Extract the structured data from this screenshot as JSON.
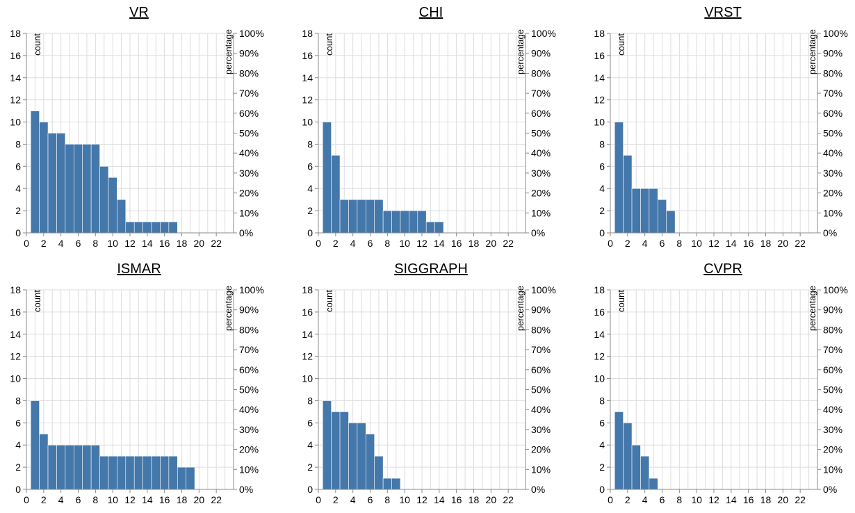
{
  "chart_data": [
    {
      "type": "bar",
      "title": "VR",
      "x": [
        1,
        2,
        3,
        4,
        5,
        6,
        7,
        8,
        9,
        10,
        11,
        12,
        13,
        14,
        15,
        16,
        17
      ],
      "values": [
        11,
        10,
        9,
        9,
        8,
        8,
        8,
        8,
        6,
        5,
        3,
        1,
        1,
        1,
        1,
        1,
        1
      ],
      "xlabel": "",
      "ylabel": "count",
      "y2label": "percentage",
      "xlim": [
        0,
        24
      ],
      "ylim": [
        0,
        18
      ],
      "y2lim": [
        0,
        100
      ],
      "xticks": [
        0,
        2,
        4,
        6,
        8,
        10,
        12,
        14,
        16,
        18,
        20,
        22
      ],
      "yticks": [
        0,
        2,
        4,
        6,
        8,
        10,
        12,
        14,
        16,
        18
      ],
      "y2ticks": [
        "0%",
        "10%",
        "20%",
        "30%",
        "40%",
        "50%",
        "60%",
        "70%",
        "80%",
        "90%",
        "100%"
      ],
      "grid": true,
      "color": "#4477aa"
    },
    {
      "type": "bar",
      "title": "CHI",
      "x": [
        1,
        2,
        3,
        4,
        5,
        6,
        7,
        8,
        9,
        10,
        11,
        12,
        13,
        14
      ],
      "values": [
        10,
        7,
        3,
        3,
        3,
        3,
        3,
        2,
        2,
        2,
        2,
        2,
        1,
        1
      ],
      "xlabel": "",
      "ylabel": "count",
      "y2label": "percentage",
      "xlim": [
        0,
        24
      ],
      "ylim": [
        0,
        18
      ],
      "y2lim": [
        0,
        100
      ],
      "xticks": [
        0,
        2,
        4,
        6,
        8,
        10,
        12,
        14,
        16,
        18,
        20,
        22
      ],
      "yticks": [
        0,
        2,
        4,
        6,
        8,
        10,
        12,
        14,
        16,
        18
      ],
      "y2ticks": [
        "0%",
        "10%",
        "20%",
        "30%",
        "40%",
        "50%",
        "60%",
        "70%",
        "80%",
        "90%",
        "100%"
      ],
      "grid": true,
      "color": "#4477aa"
    },
    {
      "type": "bar",
      "title": "VRST",
      "x": [
        1,
        2,
        3,
        4,
        5,
        6,
        7
      ],
      "values": [
        10,
        7,
        4,
        4,
        4,
        3,
        2
      ],
      "xlabel": "",
      "ylabel": "count",
      "y2label": "percentage",
      "xlim": [
        0,
        24
      ],
      "ylim": [
        0,
        18
      ],
      "y2lim": [
        0,
        100
      ],
      "xticks": [
        0,
        2,
        4,
        6,
        8,
        10,
        12,
        14,
        16,
        18,
        20,
        22
      ],
      "yticks": [
        0,
        2,
        4,
        6,
        8,
        10,
        12,
        14,
        16,
        18
      ],
      "y2ticks": [
        "0%",
        "10%",
        "20%",
        "30%",
        "40%",
        "50%",
        "60%",
        "70%",
        "80%",
        "90%",
        "100%"
      ],
      "grid": true,
      "color": "#4477aa"
    },
    {
      "type": "bar",
      "title": "ISMAR",
      "x": [
        1,
        2,
        3,
        4,
        5,
        6,
        7,
        8,
        9,
        10,
        11,
        12,
        13,
        14,
        15,
        16,
        17,
        18,
        19
      ],
      "values": [
        8,
        5,
        4,
        4,
        4,
        4,
        4,
        4,
        3,
        3,
        3,
        3,
        3,
        3,
        3,
        3,
        3,
        2,
        2
      ],
      "xlabel": "",
      "ylabel": "count",
      "y2label": "percentage",
      "xlim": [
        0,
        24
      ],
      "ylim": [
        0,
        18
      ],
      "y2lim": [
        0,
        100
      ],
      "xticks": [
        0,
        2,
        4,
        6,
        8,
        10,
        12,
        14,
        16,
        18,
        20,
        22
      ],
      "yticks": [
        0,
        2,
        4,
        6,
        8,
        10,
        12,
        14,
        16,
        18
      ],
      "y2ticks": [
        "0%",
        "10%",
        "20%",
        "30%",
        "40%",
        "50%",
        "60%",
        "70%",
        "80%",
        "90%",
        "100%"
      ],
      "grid": true,
      "color": "#4477aa"
    },
    {
      "type": "bar",
      "title": "SIGGRAPH",
      "x": [
        1,
        2,
        3,
        4,
        5,
        6,
        7,
        8,
        9
      ],
      "values": [
        8,
        7,
        7,
        6,
        6,
        5,
        3,
        1,
        1
      ],
      "xlabel": "",
      "ylabel": "count",
      "y2label": "percentage",
      "xlim": [
        0,
        24
      ],
      "ylim": [
        0,
        18
      ],
      "y2lim": [
        0,
        100
      ],
      "xticks": [
        0,
        2,
        4,
        6,
        8,
        10,
        12,
        14,
        16,
        18,
        20,
        22
      ],
      "yticks": [
        0,
        2,
        4,
        6,
        8,
        10,
        12,
        14,
        16,
        18
      ],
      "y2ticks": [
        "0%",
        "10%",
        "20%",
        "30%",
        "40%",
        "50%",
        "60%",
        "70%",
        "80%",
        "90%",
        "100%"
      ],
      "grid": true,
      "color": "#4477aa"
    },
    {
      "type": "bar",
      "title": "CVPR",
      "x": [
        1,
        2,
        3,
        4,
        5
      ],
      "values": [
        7,
        6,
        4,
        3,
        1
      ],
      "xlabel": "",
      "ylabel": "count",
      "y2label": "percentage",
      "xlim": [
        0,
        24
      ],
      "ylim": [
        0,
        18
      ],
      "y2lim": [
        0,
        100
      ],
      "xticks": [
        0,
        2,
        4,
        6,
        8,
        10,
        12,
        14,
        16,
        18,
        20,
        22
      ],
      "yticks": [
        0,
        2,
        4,
        6,
        8,
        10,
        12,
        14,
        16,
        18
      ],
      "y2ticks": [
        "0%",
        "10%",
        "20%",
        "30%",
        "40%",
        "50%",
        "60%",
        "70%",
        "80%",
        "90%",
        "100%"
      ],
      "grid": true,
      "color": "#4477aa"
    }
  ]
}
